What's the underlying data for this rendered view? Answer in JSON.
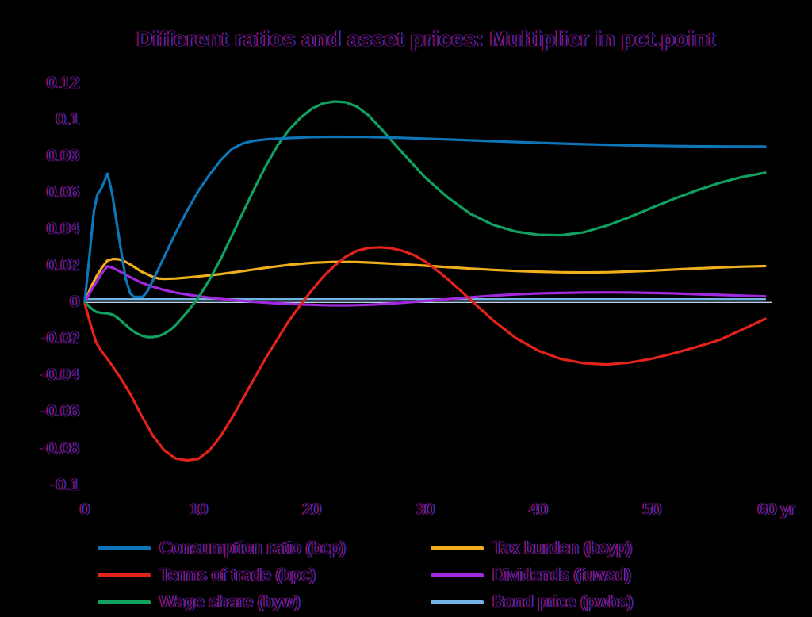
{
  "chart_data": {
    "type": "line",
    "title": "Different ratios and asset prices: Multiplier in pct.point",
    "xlabel": "",
    "ylabel": "",
    "x_unit": "yr",
    "xlim": [
      0,
      60
    ],
    "ylim": [
      -0.1,
      0.12
    ],
    "grid": false,
    "legend_position": "bottom",
    "background_color": "#000000",
    "zero_line": {
      "value": 0,
      "color": "#bdd3ea"
    },
    "y_ticks": [
      {
        "label": "0.12",
        "value": 0.12
      },
      {
        "label": "0.1",
        "value": 0.1
      },
      {
        "label": "0.08",
        "value": 0.08
      },
      {
        "label": "0.06",
        "value": 0.06
      },
      {
        "label": "0.04",
        "value": 0.04
      },
      {
        "label": "0.02",
        "value": 0.02
      },
      {
        "label": "0",
        "value": 0.0
      },
      {
        "label": "-0.02",
        "value": -0.02
      },
      {
        "label": "-0.04",
        "value": -0.04
      },
      {
        "label": "-0.06",
        "value": -0.06
      },
      {
        "label": "-0.08",
        "value": -0.08
      },
      {
        "label": "-0.1",
        "value": -0.1
      }
    ],
    "x_ticks": [
      {
        "label": "0",
        "value": 0
      },
      {
        "label": "10",
        "value": 10
      },
      {
        "label": "20",
        "value": 20
      },
      {
        "label": "30",
        "value": 30
      },
      {
        "label": "40",
        "value": 40
      },
      {
        "label": "50",
        "value": 50
      },
      {
        "label": "60 yr",
        "value": 60,
        "offset": 14
      }
    ],
    "series": [
      {
        "name": "Consumption ratio (bcp)",
        "color": "#0e76b8",
        "width": 3.2,
        "x": [
          0,
          0.4,
          0.8,
          1.1,
          1.5,
          2,
          2.4,
          2.8,
          3.2,
          3.6,
          4,
          4.3,
          5.1,
          5.5,
          6,
          7,
          8,
          9,
          10,
          11,
          12,
          13,
          14,
          15,
          16,
          17,
          18,
          20,
          22,
          25,
          28,
          30,
          33,
          36,
          40,
          44,
          48,
          52,
          56,
          60
        ],
        "y": [
          0.001,
          0.025,
          0.05,
          0.059,
          0.063,
          0.0705,
          0.06,
          0.044,
          0.028,
          0.013,
          0.005,
          0.003,
          0.003,
          0.006,
          0.012,
          0.025,
          0.038,
          0.05,
          0.061,
          0.07,
          0.078,
          0.0842,
          0.0872,
          0.0886,
          0.0893,
          0.0897,
          0.09,
          0.0905,
          0.0907,
          0.0906,
          0.0901,
          0.0897,
          0.089,
          0.0883,
          0.0874,
          0.0866,
          0.086,
          0.0856,
          0.0854,
          0.0853
        ]
      },
      {
        "name": "Terms of trade (bpc)",
        "color": "#e3221a",
        "width": 3.2,
        "x": [
          0,
          0.5,
          1,
          1.5,
          2,
          3,
          4,
          5,
          6,
          7,
          8,
          9,
          10,
          11,
          12,
          13,
          14,
          15,
          16,
          17,
          18,
          19,
          20,
          21,
          22,
          23,
          24,
          25,
          26,
          27,
          28,
          29,
          30,
          31,
          32,
          33,
          34,
          36,
          38,
          40,
          42,
          44,
          46,
          48,
          50,
          52,
          54,
          56,
          58,
          60
        ],
        "y": [
          -0.001,
          -0.012,
          -0.022,
          -0.027,
          -0.031,
          -0.04,
          -0.05,
          -0.062,
          -0.073,
          -0.081,
          -0.0855,
          -0.0865,
          -0.0857,
          -0.081,
          -0.073,
          -0.063,
          -0.052,
          -0.041,
          -0.03,
          -0.02,
          -0.01,
          -0.0015,
          0.0065,
          0.014,
          0.02,
          0.025,
          0.0283,
          0.0298,
          0.0302,
          0.0297,
          0.0283,
          0.026,
          0.0225,
          0.0178,
          0.0128,
          0.0072,
          0.0015,
          -0.0098,
          -0.0195,
          -0.0265,
          -0.031,
          -0.0333,
          -0.034,
          -0.033,
          -0.0308,
          -0.0278,
          -0.0243,
          -0.0205,
          -0.0148,
          -0.009
        ]
      },
      {
        "name": "Wage share (byw)",
        "color": "#10a05f",
        "width": 3.2,
        "x": [
          0,
          0.5,
          1,
          1.5,
          2,
          2.5,
          3,
          3.5,
          4,
          4.5,
          5,
          5.5,
          6,
          6.5,
          7,
          7.5,
          8,
          9,
          9.5,
          10,
          11,
          12,
          13,
          14,
          15,
          16,
          17,
          18,
          19,
          20,
          21,
          22,
          23,
          24,
          25,
          26,
          27,
          28,
          30,
          32,
          34,
          36,
          38,
          40,
          42,
          44,
          46,
          48,
          50,
          52,
          54,
          56,
          58,
          60
        ],
        "y": [
          0.0,
          -0.003,
          -0.0052,
          -0.0058,
          -0.006,
          -0.0068,
          -0.009,
          -0.0118,
          -0.0145,
          -0.0168,
          -0.0182,
          -0.019,
          -0.019,
          -0.0185,
          -0.0172,
          -0.0152,
          -0.0125,
          -0.0055,
          -0.0015,
          0.0025,
          0.0125,
          0.024,
          0.037,
          0.05,
          0.063,
          0.0752,
          0.086,
          0.0945,
          0.101,
          0.106,
          0.109,
          0.11,
          0.1096,
          0.1072,
          0.1025,
          0.096,
          0.089,
          0.082,
          0.0685,
          0.0575,
          0.0485,
          0.0425,
          0.0388,
          0.037,
          0.0368,
          0.0384,
          0.042,
          0.0466,
          0.0518,
          0.0568,
          0.0614,
          0.0655,
          0.0687,
          0.071
        ]
      },
      {
        "name": "Tax burden (bsyp)",
        "color": "#efae1b",
        "width": 3.2,
        "x": [
          0,
          0.5,
          1,
          1.5,
          2,
          2.5,
          3,
          3.5,
          4,
          5,
          6,
          6.5,
          7,
          8,
          9,
          10,
          12,
          14,
          16,
          18,
          20,
          22,
          24,
          26,
          28,
          30,
          32,
          34,
          36,
          38,
          40,
          42,
          44,
          46,
          48,
          50,
          52,
          54,
          56,
          58,
          60
        ],
        "y": [
          0.0,
          0.008,
          0.014,
          0.019,
          0.023,
          0.0238,
          0.0236,
          0.0225,
          0.0208,
          0.0168,
          0.014,
          0.0131,
          0.0129,
          0.0131,
          0.0136,
          0.0142,
          0.0155,
          0.0172,
          0.019,
          0.0206,
          0.0217,
          0.0222,
          0.0221,
          0.0216,
          0.0209,
          0.0201,
          0.0193,
          0.0185,
          0.0178,
          0.0172,
          0.0168,
          0.0165,
          0.0164,
          0.0165,
          0.0169,
          0.0174,
          0.018,
          0.0186,
          0.0191,
          0.0196,
          0.0199
        ]
      },
      {
        "name": "Dividends (fuwsd)",
        "color": "#a229dd",
        "width": 3.2,
        "x": [
          0,
          0.5,
          1,
          1.5,
          2,
          2.5,
          3,
          4,
          5,
          6,
          7,
          8,
          9,
          10,
          11,
          12,
          13,
          14,
          15,
          16,
          17,
          18,
          19,
          20,
          21,
          22,
          23,
          24,
          25,
          26,
          27,
          28,
          29,
          30,
          32,
          34,
          36,
          38,
          40,
          42,
          44,
          46,
          48,
          50,
          52,
          54,
          56,
          58,
          60
        ],
        "y": [
          0.0,
          0.006,
          0.011,
          0.016,
          0.0198,
          0.0188,
          0.0172,
          0.0138,
          0.0108,
          0.0086,
          0.0068,
          0.0054,
          0.0043,
          0.0034,
          0.0026,
          0.0019,
          0.0013,
          0.0008,
          0.0003,
          -0.0001,
          -0.0005,
          -0.0008,
          -0.0011,
          -0.0013,
          -0.0015,
          -0.0016,
          -0.0016,
          -0.0015,
          -0.0013,
          -0.001,
          -0.0006,
          -0.0002,
          0.0003,
          0.0008,
          0.0018,
          0.0028,
          0.0037,
          0.0044,
          0.0049,
          0.0052,
          0.0054,
          0.0055,
          0.0054,
          0.0052,
          0.0049,
          0.0045,
          0.0041,
          0.0037,
          0.0033
        ]
      },
      {
        "name": "Bond price (pwbs)",
        "color": "#72b5e2",
        "width": 2.4,
        "x": [
          0,
          0.2,
          60
        ],
        "y": [
          0.0002,
          0.0018,
          0.0018
        ]
      }
    ],
    "legend_columns": [
      [
        0,
        1,
        2
      ],
      [
        3,
        4,
        5
      ]
    ]
  }
}
